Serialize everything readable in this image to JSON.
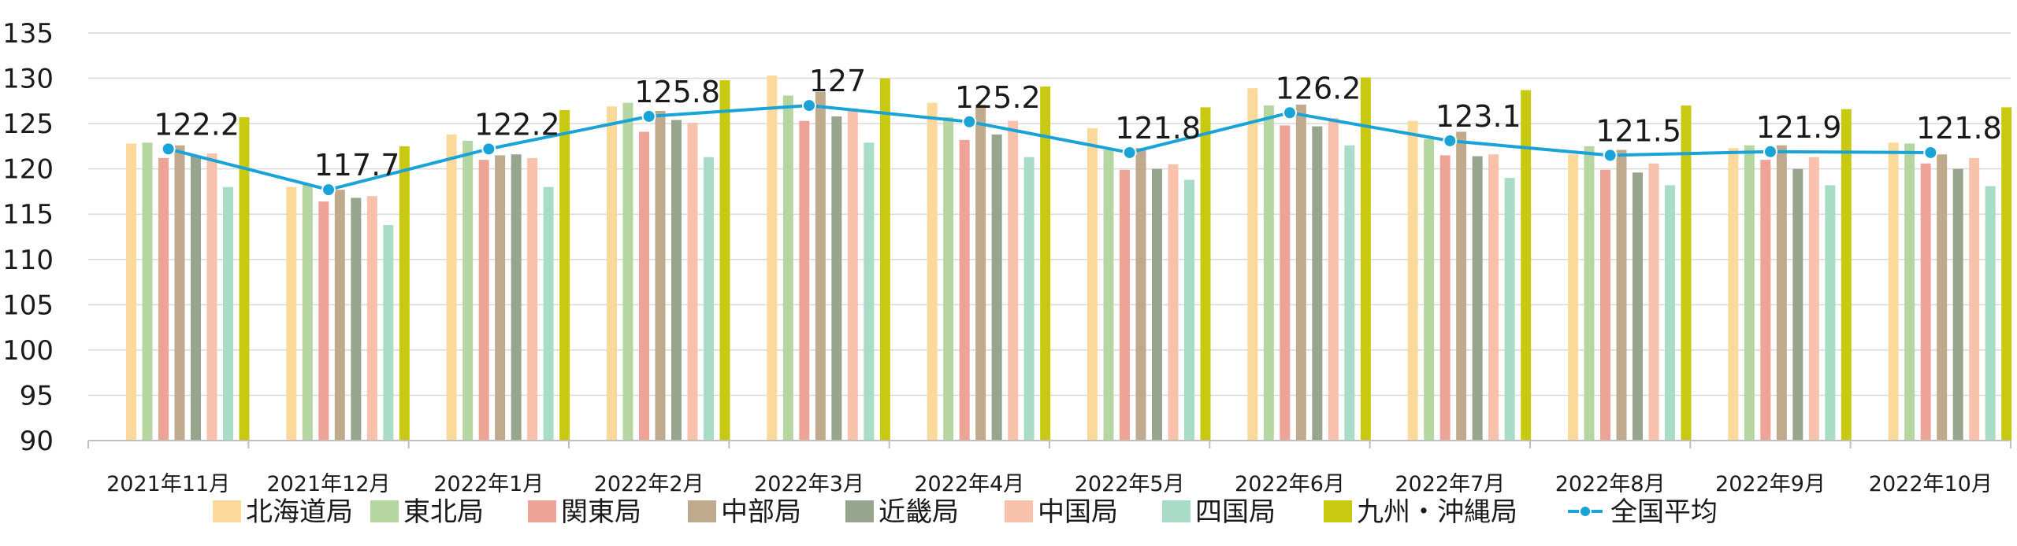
{
  "chart_data": {
    "type": "bar",
    "title": "",
    "xlabel": "",
    "ylabel": "",
    "ylim": [
      90,
      135
    ],
    "yticks": [
      90,
      95,
      100,
      105,
      110,
      115,
      120,
      125,
      130,
      135
    ],
    "grid": true,
    "legend_position": "bottom",
    "categories": [
      "2021年11月",
      "2021年12月",
      "2022年1月",
      "2022年2月",
      "2022年3月",
      "2022年4月",
      "2022年5月",
      "2022年6月",
      "2022年7月",
      "2022年8月",
      "2022年9月",
      "2022年10月"
    ],
    "series": [
      {
        "name": "北海道局",
        "color": "#fbd99a",
        "values": [
          122.8,
          118.0,
          123.8,
          126.9,
          130.3,
          127.3,
          124.5,
          128.9,
          125.3,
          121.6,
          122.3,
          122.9
        ]
      },
      {
        "name": "東北局",
        "color": "#b5d6a0",
        "values": [
          122.9,
          118.3,
          123.1,
          127.3,
          128.1,
          125.7,
          122.1,
          127.0,
          123.3,
          122.5,
          122.6,
          122.8
        ]
      },
      {
        "name": "関東局",
        "color": "#eda497",
        "values": [
          121.2,
          116.4,
          121.0,
          124.1,
          125.3,
          123.2,
          119.9,
          124.8,
          121.5,
          119.9,
          121.0,
          120.6
        ]
      },
      {
        "name": "中部局",
        "color": "#bfaa8e",
        "values": [
          122.6,
          117.7,
          121.5,
          126.4,
          128.5,
          127.1,
          122.3,
          127.1,
          124.1,
          122.1,
          122.6,
          121.6
        ]
      },
      {
        "name": "近畿局",
        "color": "#97a58f",
        "values": [
          121.5,
          116.8,
          121.6,
          125.4,
          125.8,
          123.8,
          120.0,
          124.7,
          121.4,
          119.6,
          120.0,
          120.0
        ]
      },
      {
        "name": "中国局",
        "color": "#f8c1ab",
        "values": [
          121.7,
          117.0,
          121.2,
          125.1,
          126.7,
          125.3,
          120.5,
          125.6,
          121.6,
          120.6,
          121.3,
          121.2
        ]
      },
      {
        "name": "四国局",
        "color": "#a8dcc6",
        "values": [
          118.0,
          113.8,
          118.0,
          121.3,
          122.9,
          121.3,
          118.8,
          122.6,
          119.0,
          118.2,
          118.2,
          118.1
        ]
      },
      {
        "name": "九州・沖縄局",
        "color": "#c9c912",
        "values": [
          125.7,
          122.5,
          126.5,
          129.8,
          130.0,
          129.1,
          126.8,
          130.1,
          128.7,
          127.0,
          126.6,
          126.8
        ]
      }
    ],
    "line_series": {
      "name": "全国平均",
      "color": "#1aa3d6",
      "values": [
        122.2,
        117.7,
        122.2,
        125.8,
        127.0,
        125.2,
        121.8,
        126.2,
        123.1,
        121.5,
        121.9,
        121.8
      ],
      "labels": [
        "122.2",
        "117.7",
        "122.2",
        "125.8",
        "127",
        "125.2",
        "121.8",
        "126.2",
        "123.1",
        "121.5",
        "121.9",
        "121.8"
      ]
    }
  }
}
